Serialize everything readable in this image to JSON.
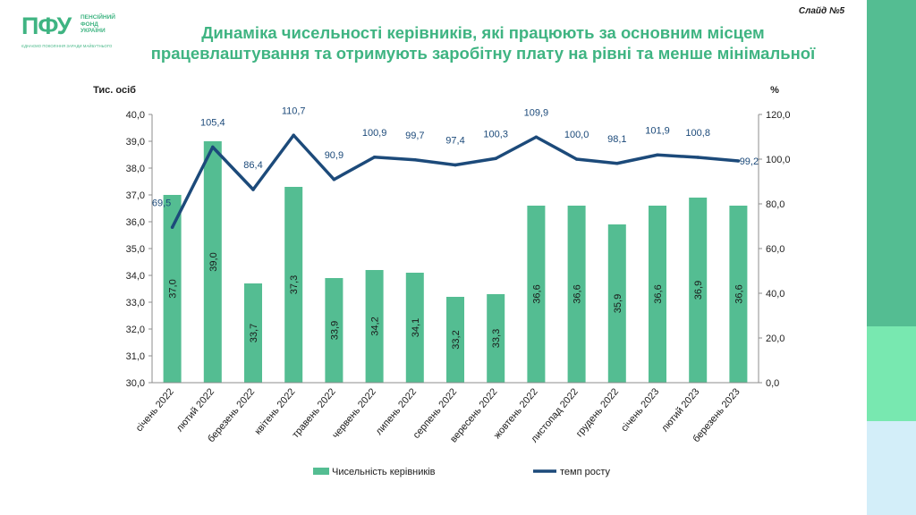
{
  "logo": {
    "mark": "ПФУ",
    "line1": "ПЕНСІЙНИЙ",
    "line2": "ФОНД",
    "line3": "УКРАЇНИ",
    "subline": "ЄДНАЄМО ПОКОЛІННЯ ЗАРАДИ МАЙБУТНЬОГО"
  },
  "slide_label": "Слайд №5",
  "title_line1": "Динаміка чисельності керівників, які працюють за основним місцем",
  "title_line2": "працевлаштування та отримують заробітну плату на рівні та менше мінімальної",
  "colors": {
    "bar": "#54bd92",
    "line": "#1c4a7a",
    "accent": "#3fb482"
  },
  "chart_data": {
    "type": "bar+line",
    "categories": [
      "січень 2022",
      "лютий 2022",
      "березень 2022",
      "квітень 2022",
      "травень 2022",
      "червень 2022",
      "липень 2022",
      "серпень 2022",
      "вересень 2022",
      "жовтень 2022",
      "листопад 2022",
      "грудень 2022",
      "січень 2023",
      "лютий 2023",
      "березень 2023"
    ],
    "series": [
      {
        "name": "Чисельність керівників",
        "type": "bar",
        "axis": "left",
        "values": [
          37.0,
          39.0,
          33.7,
          37.3,
          33.9,
          34.2,
          34.1,
          33.2,
          33.3,
          36.6,
          36.6,
          35.9,
          36.6,
          36.9,
          36.6
        ],
        "labels": [
          "37,0",
          "39,0",
          "33,7",
          "37,3",
          "33,9",
          "34,2",
          "34,1",
          "33,2",
          "33,3",
          "36,6",
          "36,6",
          "35,9",
          "36,6",
          "36,9",
          "36,6"
        ]
      },
      {
        "name": "темп росту",
        "type": "line",
        "axis": "right",
        "values": [
          69.5,
          105.4,
          86.4,
          110.7,
          90.9,
          100.9,
          99.7,
          97.4,
          100.3,
          109.9,
          100.0,
          98.1,
          101.9,
          100.8,
          99.2
        ],
        "labels": [
          "69,5",
          "105,4",
          "86,4",
          "110,7",
          "90,9",
          "100,9",
          "99,7",
          "97,4",
          "100,3",
          "109,9",
          "100,0",
          "98,1",
          "101,9",
          "100,8",
          "99,2"
        ]
      }
    ],
    "left_axis": {
      "label": "Тис. осіб",
      "min": 30,
      "max": 40,
      "ticks": [
        "30,0",
        "31,0",
        "32,0",
        "33,0",
        "34,0",
        "35,0",
        "36,0",
        "37,0",
        "38,0",
        "39,0",
        "40,0"
      ]
    },
    "right_axis": {
      "label": "%",
      "min": 0,
      "max": 120,
      "ticks": [
        "0,0",
        "20,0",
        "40,0",
        "60,0",
        "80,0",
        "100,0",
        "120,0"
      ]
    },
    "legend_position": "bottom",
    "grid": false
  }
}
